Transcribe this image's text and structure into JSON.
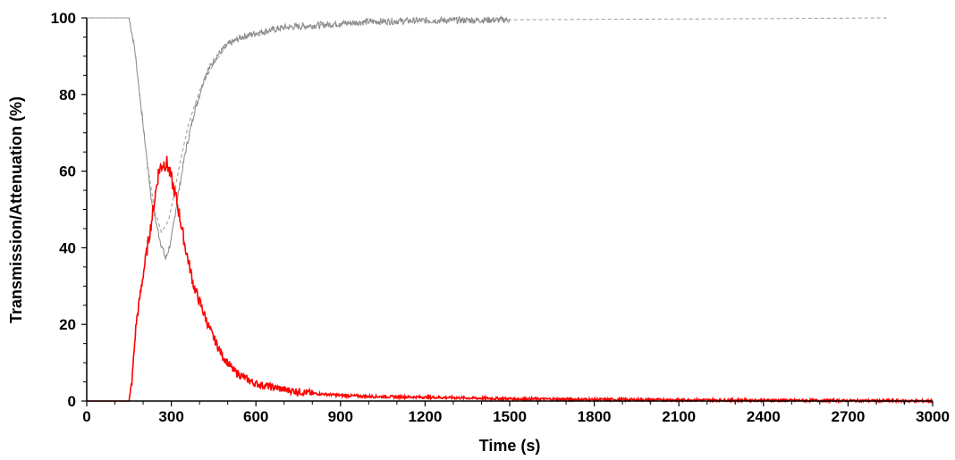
{
  "chart_data": {
    "type": "line",
    "xlabel": "Time (s)",
    "ylabel": "Transmission/Attenuation (%)",
    "xlim": [
      0,
      3000
    ],
    "ylim": [
      0,
      100
    ],
    "xticks": [
      0,
      300,
      600,
      900,
      1200,
      1500,
      1800,
      2100,
      2400,
      2700,
      3000
    ],
    "yticks": [
      0,
      20,
      40,
      60,
      80,
      100
    ],
    "grid": false,
    "series": [
      {
        "color": "#888888",
        "style": "noisy",
        "points": [
          [
            0,
            100
          ],
          [
            150,
            100
          ],
          [
            170,
            92
          ],
          [
            200,
            72
          ],
          [
            230,
            52
          ],
          [
            260,
            42
          ],
          [
            280,
            37
          ],
          [
            300,
            42
          ],
          [
            320,
            52
          ],
          [
            350,
            65
          ],
          [
            380,
            75
          ],
          [
            420,
            85
          ],
          [
            460,
            90
          ],
          [
            500,
            93
          ],
          [
            550,
            95
          ],
          [
            600,
            96
          ],
          [
            700,
            97.5
          ],
          [
            800,
            98
          ],
          [
            900,
            98.5
          ],
          [
            1000,
            99
          ],
          [
            1200,
            99.3
          ],
          [
            1500,
            99.5
          ]
        ]
      },
      {
        "color": "#9a9a9a",
        "style": "dashed",
        "points": [
          [
            0,
            100
          ],
          [
            150,
            100
          ],
          [
            170,
            92
          ],
          [
            190,
            78
          ],
          [
            215,
            62
          ],
          [
            240,
            50
          ],
          [
            265,
            44
          ],
          [
            290,
            47
          ],
          [
            310,
            54
          ],
          [
            330,
            62
          ],
          [
            360,
            72
          ],
          [
            400,
            81
          ],
          [
            450,
            88
          ],
          [
            500,
            93
          ],
          [
            550,
            95
          ],
          [
            600,
            96
          ],
          [
            700,
            97.5
          ],
          [
            800,
            98
          ],
          [
            900,
            98.5
          ],
          [
            1000,
            99
          ],
          [
            1200,
            99.3
          ],
          [
            1500,
            99.5
          ],
          [
            1800,
            99.6
          ],
          [
            2100,
            99.7
          ],
          [
            2400,
            99.8
          ],
          [
            2840,
            100
          ]
        ]
      },
      {
        "color": "#ff0000",
        "style": "noisy",
        "points": [
          [
            0,
            0
          ],
          [
            150,
            0
          ],
          [
            160,
            5
          ],
          [
            175,
            20
          ],
          [
            200,
            33
          ],
          [
            230,
            47
          ],
          [
            255,
            60
          ],
          [
            270,
            62
          ],
          [
            285,
            62
          ],
          [
            300,
            58
          ],
          [
            320,
            52
          ],
          [
            350,
            40
          ],
          [
            380,
            30
          ],
          [
            410,
            24
          ],
          [
            440,
            18
          ],
          [
            480,
            12
          ],
          [
            520,
            8
          ],
          [
            560,
            6
          ],
          [
            600,
            4.5
          ],
          [
            700,
            3
          ],
          [
            800,
            2
          ],
          [
            900,
            1.5
          ],
          [
            1000,
            1.2
          ],
          [
            1200,
            1
          ],
          [
            1500,
            0.6
          ],
          [
            1800,
            0.4
          ],
          [
            2100,
            0.3
          ],
          [
            2400,
            0.2
          ],
          [
            2700,
            0.1
          ],
          [
            3000,
            0
          ]
        ]
      }
    ]
  }
}
